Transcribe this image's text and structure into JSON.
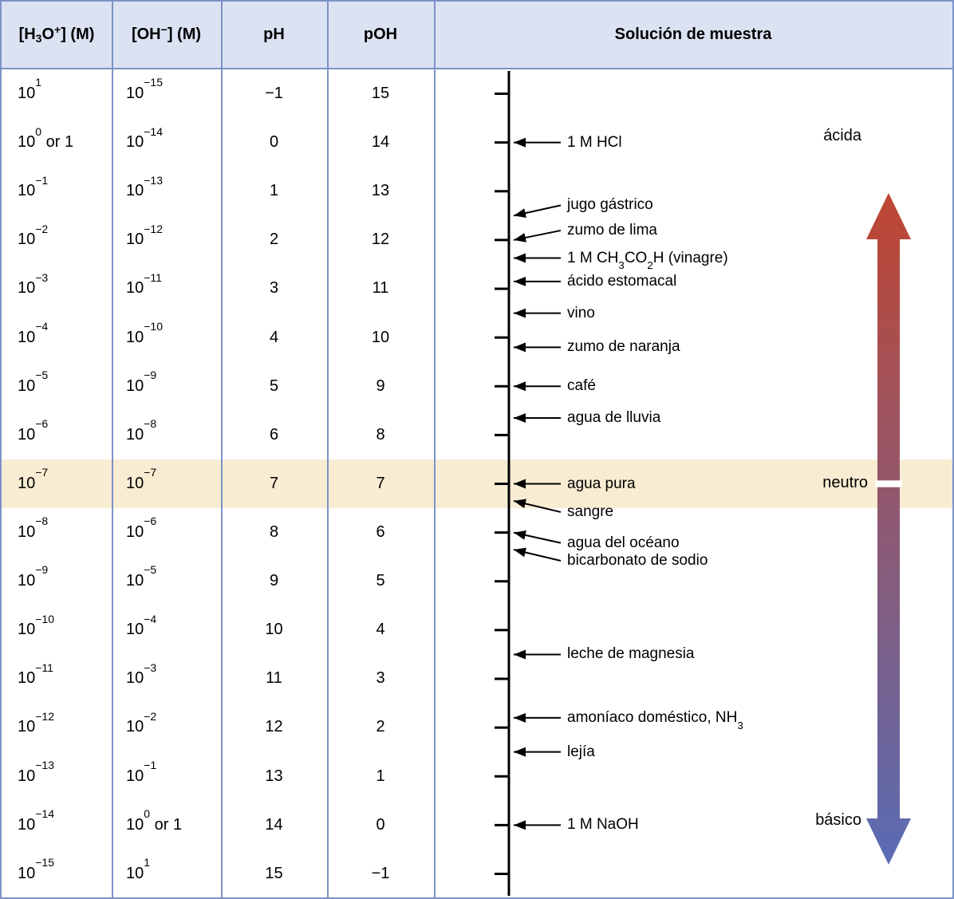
{
  "colors": {
    "border": "#7d92c6",
    "header_bg": "#dbe2f2",
    "highlight_row": "#f8ecd2",
    "axis": "#000000",
    "gradient_top": "#bf4632",
    "gradient_bottom": "#5a6cb4",
    "text": "#000000"
  },
  "scale": {
    "ph_min": -1,
    "ph_max": 15,
    "neutral_ph": 7
  },
  "zones": {
    "acidic": "ácida",
    "neutral": "neutro",
    "basic": "básico"
  },
  "table": {
    "headers": [
      {
        "id": "h3o",
        "parts": [
          {
            "text": "[H"
          },
          {
            "text": "3",
            "style": "sub"
          },
          {
            "text": "O"
          },
          {
            "text": "+",
            "style": "sup"
          },
          {
            "text": "] (M)"
          }
        ]
      },
      {
        "id": "oh",
        "parts": [
          {
            "text": "[OH"
          },
          {
            "text": "−",
            "style": "sup"
          },
          {
            "text": "] (M)"
          }
        ]
      },
      {
        "id": "ph",
        "parts": [
          {
            "text": "pH"
          }
        ]
      },
      {
        "id": "poh",
        "parts": [
          {
            "text": "pOH"
          }
        ]
      },
      {
        "id": "sample",
        "parts": [
          {
            "text": "Solución de muestra"
          }
        ]
      }
    ],
    "rows": [
      {
        "h3o": {
          "base": "10",
          "exp": "1"
        },
        "oh": {
          "base": "10",
          "exp": "−15"
        },
        "ph": "−1",
        "poh": "15"
      },
      {
        "h3o": {
          "base": "10",
          "exp": "0",
          "suffix": " or 1"
        },
        "oh": {
          "base": "10",
          "exp": "−14"
        },
        "ph": "0",
        "poh": "14"
      },
      {
        "h3o": {
          "base": "10",
          "exp": "−1"
        },
        "oh": {
          "base": "10",
          "exp": "−13"
        },
        "ph": "1",
        "poh": "13"
      },
      {
        "h3o": {
          "base": "10",
          "exp": "−2"
        },
        "oh": {
          "base": "10",
          "exp": "−12"
        },
        "ph": "2",
        "poh": "12"
      },
      {
        "h3o": {
          "base": "10",
          "exp": "−3"
        },
        "oh": {
          "base": "10",
          "exp": "−11"
        },
        "ph": "3",
        "poh": "11"
      },
      {
        "h3o": {
          "base": "10",
          "exp": "−4"
        },
        "oh": {
          "base": "10",
          "exp": "−10"
        },
        "ph": "4",
        "poh": "10"
      },
      {
        "h3o": {
          "base": "10",
          "exp": "−5"
        },
        "oh": {
          "base": "10",
          "exp": "−9"
        },
        "ph": "5",
        "poh": "9"
      },
      {
        "h3o": {
          "base": "10",
          "exp": "−6"
        },
        "oh": {
          "base": "10",
          "exp": "−8"
        },
        "ph": "6",
        "poh": "8"
      },
      {
        "h3o": {
          "base": "10",
          "exp": "−7"
        },
        "oh": {
          "base": "10",
          "exp": "−7"
        },
        "ph": "7",
        "poh": "7",
        "neutral": true
      },
      {
        "h3o": {
          "base": "10",
          "exp": "−8"
        },
        "oh": {
          "base": "10",
          "exp": "−6"
        },
        "ph": "8",
        "poh": "6"
      },
      {
        "h3o": {
          "base": "10",
          "exp": "−9"
        },
        "oh": {
          "base": "10",
          "exp": "−5"
        },
        "ph": "9",
        "poh": "5"
      },
      {
        "h3o": {
          "base": "10",
          "exp": "−10"
        },
        "oh": {
          "base": "10",
          "exp": "−4"
        },
        "ph": "10",
        "poh": "4"
      },
      {
        "h3o": {
          "base": "10",
          "exp": "−11"
        },
        "oh": {
          "base": "10",
          "exp": "−3"
        },
        "ph": "11",
        "poh": "3"
      },
      {
        "h3o": {
          "base": "10",
          "exp": "−12"
        },
        "oh": {
          "base": "10",
          "exp": "−2"
        },
        "ph": "12",
        "poh": "2"
      },
      {
        "h3o": {
          "base": "10",
          "exp": "−13"
        },
        "oh": {
          "base": "10",
          "exp": "−1"
        },
        "ph": "13",
        "poh": "1"
      },
      {
        "h3o": {
          "base": "10",
          "exp": "−14"
        },
        "oh": {
          "base": "10",
          "exp": "0",
          "suffix": " or 1"
        },
        "ph": "14",
        "poh": "0"
      },
      {
        "h3o": {
          "base": "10",
          "exp": "−15"
        },
        "oh": {
          "base": "10",
          "exp": "1"
        },
        "ph": "15",
        "poh": "−1"
      }
    ]
  },
  "annotations": [
    {
      "parts": [
        {
          "text": "1 M HCl"
        }
      ],
      "ph": 0,
      "label_dy": 0
    },
    {
      "parts": [
        {
          "text": "jugo gástrico"
        }
      ],
      "ph": 1.5,
      "label_dy": -13
    },
    {
      "parts": [
        {
          "text": "zumo de lima"
        }
      ],
      "ph": 2.0,
      "label_dy": -12
    },
    {
      "parts": [
        {
          "text": "1 M CH"
        },
        {
          "text": "3",
          "style": "sub"
        },
        {
          "text": "CO"
        },
        {
          "text": "2",
          "style": "sub"
        },
        {
          "text": "H (vinagre)"
        }
      ],
      "ph": 2.37,
      "label_dy": 0
    },
    {
      "parts": [
        {
          "text": "ácido estomacal"
        }
      ],
      "ph": 2.85,
      "label_dy": 0
    },
    {
      "parts": [
        {
          "text": "vino"
        }
      ],
      "ph": 3.5,
      "label_dy": 0
    },
    {
      "parts": [
        {
          "text": "zumo de naranja"
        }
      ],
      "ph": 4.2,
      "label_dy": 0
    },
    {
      "parts": [
        {
          "text": "café"
        }
      ],
      "ph": 5.0,
      "label_dy": 0
    },
    {
      "parts": [
        {
          "text": "agua de lluvia"
        }
      ],
      "ph": 5.65,
      "label_dy": 0
    },
    {
      "parts": [
        {
          "text": "agua pura"
        }
      ],
      "ph": 7.0,
      "label_dy": 0
    },
    {
      "parts": [
        {
          "text": "sangre"
        }
      ],
      "ph": 7.35,
      "label_dy": 14
    },
    {
      "parts": [
        {
          "text": "agua del océano"
        }
      ],
      "ph": 8.0,
      "label_dy": 13
    },
    {
      "parts": [
        {
          "text": "bicarbonato de sodio"
        }
      ],
      "ph": 8.35,
      "label_dy": 14
    },
    {
      "parts": [
        {
          "text": "leche de magnesia"
        }
      ],
      "ph": 10.5,
      "label_dy": 0
    },
    {
      "parts": [
        {
          "text": "amoníaco doméstico, NH"
        },
        {
          "text": "3",
          "style": "sub"
        }
      ],
      "ph": 11.8,
      "label_dy": 0
    },
    {
      "parts": [
        {
          "text": "lejía"
        }
      ],
      "ph": 12.5,
      "label_dy": 0
    },
    {
      "parts": [
        {
          "text": "1 M NaOH"
        }
      ],
      "ph": 14.0,
      "label_dy": 0
    }
  ]
}
